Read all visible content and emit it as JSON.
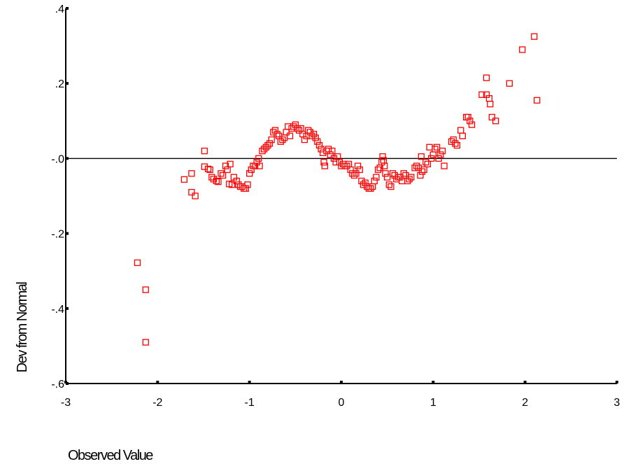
{
  "chart_data": {
    "type": "scatter",
    "title": "",
    "xlabel": "Observed Value",
    "ylabel": "Dev from Normal",
    "xlim": [
      -3,
      3
    ],
    "ylim": [
      -0.6,
      0.4
    ],
    "x_ticks": [
      {
        "value": -3,
        "label": "-3"
      },
      {
        "value": -2,
        "label": "-2"
      },
      {
        "value": -1,
        "label": "-1"
      },
      {
        "value": 0,
        "label": "0"
      },
      {
        "value": 1,
        "label": "1"
      },
      {
        "value": 2,
        "label": "2"
      },
      {
        "value": 3,
        "label": "3"
      }
    ],
    "y_ticks": [
      {
        "value": 0.4,
        "label": ".4"
      },
      {
        "value": 0.2,
        "label": ".2"
      },
      {
        "value": 0.0,
        "label": "-.0"
      },
      {
        "value": -0.2,
        "label": "-.2"
      },
      {
        "value": -0.4,
        "label": "-.4"
      },
      {
        "value": -0.6,
        "label": "-.6"
      }
    ],
    "reference_line_y": 0,
    "grid": false,
    "marker": "square-open",
    "colors": {
      "marker": "#ff0000",
      "axis": "#000000",
      "reference": "#000000"
    },
    "series": [
      {
        "points": [
          [
            -2.22,
            -0.278
          ],
          [
            -2.13,
            -0.35
          ],
          [
            -2.13,
            -0.49
          ],
          [
            -1.71,
            -0.056
          ],
          [
            -1.63,
            -0.04
          ],
          [
            -1.63,
            -0.09
          ],
          [
            -1.59,
            -0.1
          ],
          [
            -1.49,
            0.02
          ],
          [
            -1.49,
            -0.022
          ],
          [
            -1.45,
            -0.028
          ],
          [
            -1.43,
            -0.03
          ],
          [
            -1.41,
            -0.05
          ],
          [
            -1.39,
            -0.055
          ],
          [
            -1.36,
            -0.06
          ],
          [
            -1.34,
            -0.062
          ],
          [
            -1.31,
            -0.04
          ],
          [
            -1.29,
            -0.045
          ],
          [
            -1.26,
            -0.02
          ],
          [
            -1.24,
            -0.03
          ],
          [
            -1.22,
            -0.068
          ],
          [
            -1.21,
            -0.015
          ],
          [
            -1.19,
            -0.07
          ],
          [
            -1.17,
            -0.05
          ],
          [
            -1.14,
            -0.06
          ],
          [
            -1.12,
            -0.07
          ],
          [
            -1.1,
            -0.075
          ],
          [
            -1.08,
            -0.075
          ],
          [
            -1.06,
            -0.08
          ],
          [
            -1.04,
            -0.08
          ],
          [
            -1.02,
            -0.07
          ],
          [
            -1.0,
            -0.04
          ],
          [
            -0.98,
            -0.03
          ],
          [
            -0.96,
            -0.02
          ],
          [
            -0.94,
            -0.02
          ],
          [
            -0.92,
            -0.01
          ],
          [
            -0.9,
            0.0
          ],
          [
            -0.89,
            -0.02
          ],
          [
            -0.86,
            0.02
          ],
          [
            -0.84,
            0.025
          ],
          [
            -0.82,
            0.03
          ],
          [
            -0.8,
            0.035
          ],
          [
            -0.78,
            0.04
          ],
          [
            -0.76,
            0.05
          ],
          [
            -0.74,
            0.07
          ],
          [
            -0.72,
            0.075
          ],
          [
            -0.7,
            0.065
          ],
          [
            -0.68,
            0.06
          ],
          [
            -0.66,
            0.045
          ],
          [
            -0.64,
            0.05
          ],
          [
            -0.62,
            0.055
          ],
          [
            -0.6,
            0.07
          ],
          [
            -0.58,
            0.085
          ],
          [
            -0.56,
            0.06
          ],
          [
            -0.54,
            0.08
          ],
          [
            -0.52,
            0.085
          ],
          [
            -0.5,
            0.09
          ],
          [
            -0.48,
            0.08
          ],
          [
            -0.46,
            0.075
          ],
          [
            -0.44,
            0.08
          ],
          [
            -0.42,
            0.065
          ],
          [
            -0.4,
            0.05
          ],
          [
            -0.38,
            0.06
          ],
          [
            -0.36,
            0.075
          ],
          [
            -0.34,
            0.07
          ],
          [
            -0.32,
            0.06
          ],
          [
            -0.3,
            0.065
          ],
          [
            -0.28,
            0.055
          ],
          [
            -0.26,
            0.045
          ],
          [
            -0.24,
            0.035
          ],
          [
            -0.22,
            0.025
          ],
          [
            -0.2,
            0.015
          ],
          [
            -0.19,
            -0.01
          ],
          [
            -0.18,
            -0.02
          ],
          [
            -0.16,
            0.02
          ],
          [
            -0.14,
            0.025
          ],
          [
            -0.12,
            0.01
          ],
          [
            -0.1,
            0.02
          ],
          [
            -0.08,
            0.0
          ],
          [
            -0.06,
            -0.01
          ],
          [
            -0.04,
            0.005
          ],
          [
            -0.02,
            -0.01
          ],
          [
            0.0,
            -0.02
          ],
          [
            0.02,
            -0.015
          ],
          [
            0.04,
            -0.02
          ],
          [
            0.06,
            -0.02
          ],
          [
            0.08,
            -0.015
          ],
          [
            0.1,
            -0.03
          ],
          [
            0.12,
            -0.04
          ],
          [
            0.14,
            -0.045
          ],
          [
            0.16,
            -0.04
          ],
          [
            0.18,
            -0.02
          ],
          [
            0.2,
            -0.03
          ],
          [
            0.22,
            -0.06
          ],
          [
            0.24,
            -0.07
          ],
          [
            0.26,
            -0.065
          ],
          [
            0.28,
            -0.075
          ],
          [
            0.3,
            -0.08
          ],
          [
            0.32,
            -0.08
          ],
          [
            0.34,
            -0.075
          ],
          [
            0.36,
            -0.06
          ],
          [
            0.38,
            -0.05
          ],
          [
            0.4,
            -0.03
          ],
          [
            0.42,
            -0.025
          ],
          [
            0.44,
            -0.01
          ],
          [
            0.45,
            0.005
          ],
          [
            0.46,
            -0.005
          ],
          [
            0.47,
            -0.02
          ],
          [
            0.48,
            -0.04
          ],
          [
            0.5,
            -0.05
          ],
          [
            0.52,
            -0.07
          ],
          [
            0.54,
            -0.075
          ],
          [
            0.56,
            -0.04
          ],
          [
            0.58,
            -0.045
          ],
          [
            0.6,
            -0.055
          ],
          [
            0.62,
            -0.05
          ],
          [
            0.64,
            -0.05
          ],
          [
            0.66,
            -0.06
          ],
          [
            0.68,
            -0.04
          ],
          [
            0.7,
            -0.045
          ],
          [
            0.72,
            -0.06
          ],
          [
            0.74,
            -0.055
          ],
          [
            0.76,
            -0.05
          ],
          [
            0.8,
            -0.025
          ],
          [
            0.82,
            -0.02
          ],
          [
            0.84,
            -0.025
          ],
          [
            0.86,
            -0.045
          ],
          [
            0.87,
            0.005
          ],
          [
            0.88,
            -0.035
          ],
          [
            0.9,
            -0.03
          ],
          [
            0.92,
            -0.01
          ],
          [
            0.94,
            -0.015
          ],
          [
            0.96,
            0.03
          ],
          [
            0.98,
            0.0
          ],
          [
            1.0,
            0.01
          ],
          [
            1.02,
            0.025
          ],
          [
            1.04,
            0.03
          ],
          [
            1.06,
            0.0
          ],
          [
            1.08,
            0.01
          ],
          [
            1.1,
            0.02
          ],
          [
            1.12,
            -0.02
          ],
          [
            1.2,
            0.045
          ],
          [
            1.22,
            0.05
          ],
          [
            1.24,
            0.04
          ],
          [
            1.26,
            0.035
          ],
          [
            1.3,
            0.075
          ],
          [
            1.32,
            0.06
          ],
          [
            1.36,
            0.11
          ],
          [
            1.38,
            0.11
          ],
          [
            1.4,
            0.1
          ],
          [
            1.42,
            0.09
          ],
          [
            1.53,
            0.17
          ],
          [
            1.58,
            0.215
          ],
          [
            1.58,
            0.17
          ],
          [
            1.61,
            0.16
          ],
          [
            1.62,
            0.145
          ],
          [
            1.64,
            0.11
          ],
          [
            1.68,
            0.1
          ],
          [
            1.83,
            0.2
          ],
          [
            1.97,
            0.29
          ],
          [
            2.1,
            0.325
          ],
          [
            2.13,
            0.155
          ]
        ]
      }
    ]
  }
}
